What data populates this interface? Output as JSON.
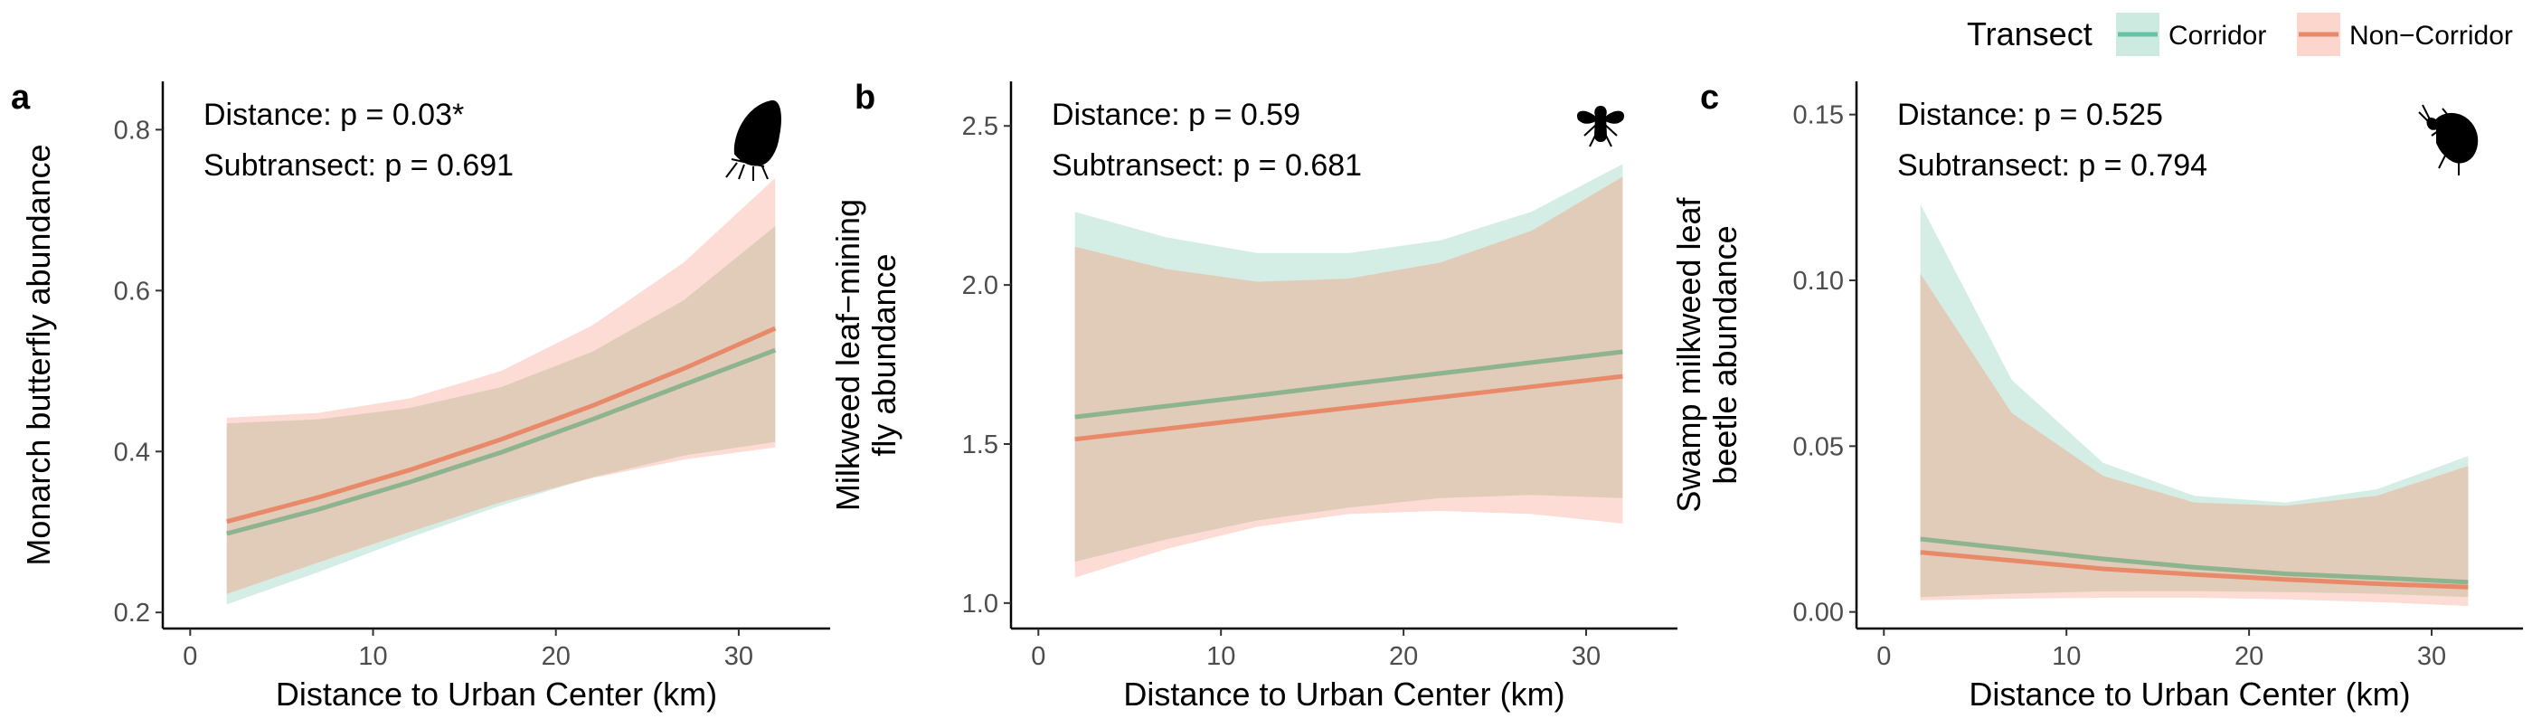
{
  "legend": {
    "title": "Transect",
    "items": [
      {
        "label": "Corridor",
        "color": "#66c2a5",
        "ribbon": "#cdeae1"
      },
      {
        "label": "Non−Corridor",
        "color": "#e8896a",
        "ribbon": "#fcd6cd"
      }
    ]
  },
  "chart_data": [
    {
      "type": "line",
      "panel": "a",
      "title": "",
      "xlabel": "Distance to Urban Center (km)",
      "ylabel": [
        "Monarch butterfly abundance"
      ],
      "xlim": [
        -1.5,
        35
      ],
      "ylim": [
        0.18,
        0.86
      ],
      "xticks": [
        0,
        10,
        20,
        30
      ],
      "xtick_labels": [
        "0",
        "10",
        "20",
        "30"
      ],
      "yticks": [
        0.2,
        0.4,
        0.6,
        0.8
      ],
      "ytick_labels": [
        "0.2",
        "0.4",
        "0.6",
        "0.8"
      ],
      "annotations": [
        "Distance: p = 0.03*",
        "Subtransect: p = 0.691"
      ],
      "icon": "butterfly-icon",
      "x": [
        2,
        7,
        12,
        17,
        22,
        27,
        32
      ],
      "series": [
        {
          "name": "Corridor",
          "color": "#66c2a5",
          "values": [
            0.298,
            0.328,
            0.362,
            0.399,
            0.44,
            0.483,
            0.526
          ],
          "lower": [
            0.21,
            0.25,
            0.293,
            0.333,
            0.368,
            0.395,
            0.412
          ],
          "upper": [
            0.435,
            0.44,
            0.454,
            0.48,
            0.524,
            0.588,
            0.68
          ]
        },
        {
          "name": "Non−Corridor",
          "color": "#e8896a",
          "values": [
            0.313,
            0.343,
            0.377,
            0.415,
            0.457,
            0.503,
            0.553
          ],
          "lower": [
            0.223,
            0.262,
            0.3,
            0.337,
            0.367,
            0.39,
            0.405
          ],
          "upper": [
            0.442,
            0.448,
            0.466,
            0.5,
            0.557,
            0.635,
            0.74
          ]
        }
      ]
    },
    {
      "type": "line",
      "panel": "b",
      "title": "",
      "xlabel": "Distance to Urban Center (km)",
      "ylabel": [
        "Milkweed leaf−mining",
        "fly abundance"
      ],
      "xlim": [
        -1.5,
        35
      ],
      "ylim": [
        0.92,
        2.64
      ],
      "xticks": [
        0,
        10,
        20,
        30
      ],
      "xtick_labels": [
        "0",
        "10",
        "20",
        "30"
      ],
      "yticks": [
        1.0,
        1.5,
        2.0,
        2.5
      ],
      "ytick_labels": [
        "1.0",
        "1.5",
        "2.0",
        "2.5"
      ],
      "annotations": [
        "Distance: p = 0.59",
        "Subtransect: p = 0.681"
      ],
      "icon": "fly-icon",
      "x": [
        2,
        7,
        12,
        17,
        22,
        27,
        32
      ],
      "series": [
        {
          "name": "Corridor",
          "color": "#66c2a5",
          "values": [
            1.585,
            1.619,
            1.653,
            1.688,
            1.722,
            1.756,
            1.79
          ],
          "lower": [
            1.13,
            1.2,
            1.26,
            1.3,
            1.33,
            1.34,
            1.33
          ],
          "upper": [
            2.23,
            2.15,
            2.1,
            2.1,
            2.14,
            2.23,
            2.38
          ]
        },
        {
          "name": "Non−Corridor",
          "color": "#e8896a",
          "values": [
            1.515,
            1.548,
            1.581,
            1.614,
            1.647,
            1.68,
            1.713
          ],
          "lower": [
            1.08,
            1.17,
            1.24,
            1.28,
            1.29,
            1.28,
            1.25
          ],
          "upper": [
            2.12,
            2.05,
            2.01,
            2.02,
            2.07,
            2.17,
            2.34
          ]
        }
      ]
    },
    {
      "type": "line",
      "panel": "c",
      "title": "",
      "xlabel": "Distance to Urban Center (km)",
      "ylabel": [
        "Swamp milkweed leaf",
        "beetle abundance"
      ],
      "xlim": [
        -1.5,
        35
      ],
      "ylim": [
        -0.005,
        0.16
      ],
      "xticks": [
        0,
        10,
        20,
        30
      ],
      "xtick_labels": [
        "0",
        "10",
        "20",
        "30"
      ],
      "yticks": [
        0.0,
        0.05,
        0.1,
        0.15
      ],
      "ytick_labels": [
        "0.00",
        "0.05",
        "0.10",
        "0.15"
      ],
      "annotations": [
        "Distance: p = 0.525",
        "Subtransect: p = 0.794"
      ],
      "icon": "beetle-icon",
      "x": [
        2,
        7,
        12,
        17,
        22,
        27,
        32
      ],
      "series": [
        {
          "name": "Corridor",
          "color": "#66c2a5",
          "values": [
            0.022,
            0.019,
            0.016,
            0.0135,
            0.0115,
            0.0103,
            0.009
          ],
          "lower": [
            0.0045,
            0.0055,
            0.0062,
            0.0063,
            0.006,
            0.0055,
            0.0045
          ],
          "upper": [
            0.123,
            0.07,
            0.045,
            0.035,
            0.033,
            0.037,
            0.047
          ]
        },
        {
          "name": "Non−Corridor",
          "color": "#e8896a",
          "values": [
            0.018,
            0.0155,
            0.013,
            0.0113,
            0.0098,
            0.0085,
            0.0075
          ],
          "lower": [
            0.0035,
            0.004,
            0.0043,
            0.0043,
            0.0038,
            0.003,
            0.0018
          ],
          "upper": [
            0.102,
            0.06,
            0.041,
            0.033,
            0.032,
            0.035,
            0.044
          ]
        }
      ]
    }
  ]
}
